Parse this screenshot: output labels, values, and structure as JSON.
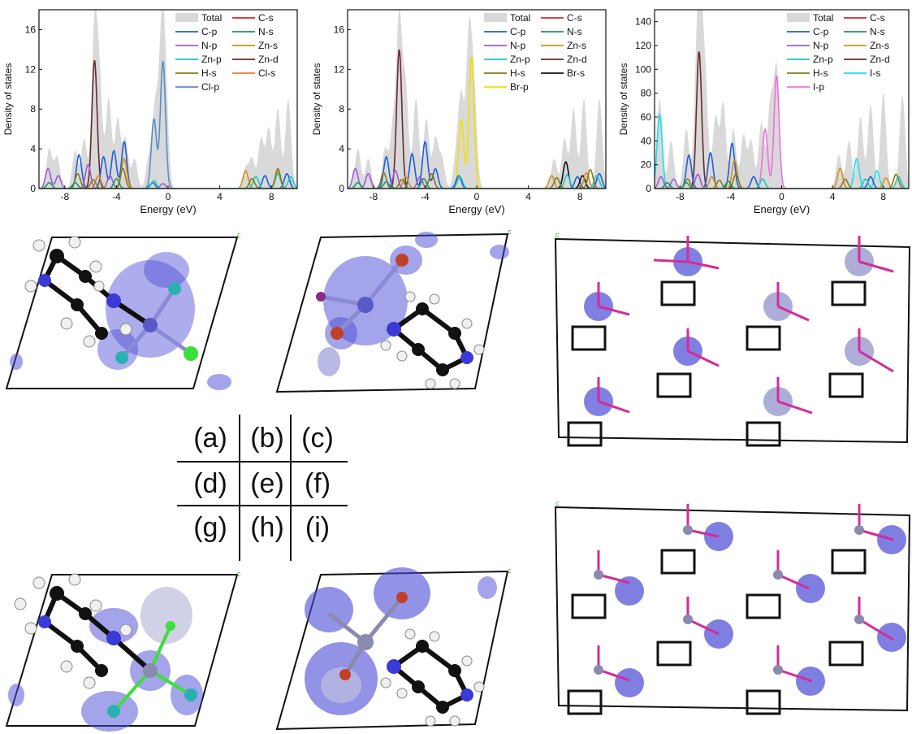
{
  "dos_panels": [
    {
      "id": "a",
      "ylabel": "Density of states",
      "xlabel": "Energy (eV)",
      "xlim": [
        -10,
        10
      ],
      "ylim": [
        0,
        18
      ],
      "xticks": [
        -8,
        -4,
        0,
        4,
        8
      ],
      "yticks": [
        0,
        4,
        8,
        12,
        16
      ],
      "legend": [
        "Total",
        "C-s",
        "C-p",
        "N-s",
        "N-p",
        "Zn-s",
        "Zn-p",
        "Zn-d",
        "H-s",
        "Cl-s",
        "Cl-p"
      ],
      "colors": {
        "Total": "#d9d9d9",
        "C-s": "#d62728",
        "C-p": "#1f5fd6",
        "N-s": "#1a9a5a",
        "N-p": "#a05ad6",
        "Zn-s": "#d6901a",
        "Zn-p": "#1ac6c6",
        "Zn-d": "#6b2a2a",
        "H-s": "#8a7a1a",
        "Cl-s": "#f07a2a",
        "Cl-p": "#5a8ec6"
      },
      "peaks": {
        "Total": [
          [
            -9.2,
            4
          ],
          [
            -8.6,
            3.2
          ],
          [
            -7.2,
            3.8
          ],
          [
            -6.5,
            5
          ],
          [
            -5.7,
            16
          ],
          [
            -5.3,
            10
          ],
          [
            -4.6,
            9
          ],
          [
            -3.9,
            7
          ],
          [
            -3.3,
            5
          ],
          [
            -2.6,
            3
          ],
          [
            -1.5,
            3
          ],
          [
            -1.0,
            8
          ],
          [
            -0.5,
            14
          ],
          [
            -0.2,
            9
          ],
          [
            6.0,
            2
          ],
          [
            6.5,
            3
          ],
          [
            7.2,
            5
          ],
          [
            7.8,
            6
          ],
          [
            8.5,
            8
          ],
          [
            9.3,
            9
          ]
        ],
        "Zn-d": [
          [
            -5.7,
            12.9
          ]
        ],
        "Cl-p": [
          [
            -1.1,
            7
          ],
          [
            -0.4,
            12.8
          ]
        ],
        "C-p": [
          [
            -6.9,
            3.4
          ],
          [
            -5.0,
            3.2
          ],
          [
            -4.2,
            3.8
          ],
          [
            -3.4,
            4.7
          ],
          [
            -1.2,
            0.6
          ],
          [
            7.5,
            1.3
          ],
          [
            9.2,
            1.5
          ]
        ],
        "Zn-s": [
          [
            -3.4,
            3
          ],
          [
            -5.4,
            1.3
          ],
          [
            6.0,
            1.8
          ],
          [
            8.5,
            1.7
          ]
        ],
        "N-p": [
          [
            -9.3,
            2
          ],
          [
            -8.5,
            1.3
          ],
          [
            -6.2,
            2.4
          ],
          [
            -4.5,
            1.3
          ],
          [
            -0.4,
            0.5
          ]
        ],
        "Zn-p": [
          [
            -1.1,
            0.8
          ],
          [
            6.8,
            1.2
          ],
          [
            8.5,
            1.5
          ],
          [
            9.5,
            1.2
          ]
        ],
        "H-s": [
          [
            -7.0,
            1.5
          ],
          [
            -5.8,
            0.9
          ],
          [
            -3.5,
            2
          ],
          [
            6.5,
            1
          ],
          [
            8.5,
            2
          ]
        ],
        "N-s": [
          [
            -9.2,
            0.6
          ],
          [
            -7.2,
            0.6
          ],
          [
            -4.0,
            1.0
          ]
        ]
      }
    },
    {
      "id": "b",
      "ylabel": "Density of states",
      "xlabel": "Energy (eV)",
      "xlim": [
        -10,
        10
      ],
      "ylim": [
        0,
        18
      ],
      "xticks": [
        -8,
        -4,
        0,
        4,
        8
      ],
      "yticks": [
        0,
        4,
        8,
        12,
        16
      ],
      "legend": [
        "Total",
        "C-s",
        "C-p",
        "N-s",
        "N-p",
        "Zn-s",
        "Zn-p",
        "Zn-d",
        "H-s",
        "Br-s",
        "Br-p"
      ],
      "colors": {
        "Total": "#d9d9d9",
        "C-s": "#d62728",
        "C-p": "#1f5fd6",
        "N-s": "#1a9a5a",
        "N-p": "#a05ad6",
        "Zn-s": "#d6901a",
        "Zn-p": "#1ac6c6",
        "Zn-d": "#6b2a2a",
        "H-s": "#8a7a1a",
        "Br-s": "#111111",
        "Br-p": "#f0e000"
      },
      "peaks": {
        "Total": [
          [
            -9.2,
            4
          ],
          [
            -8.4,
            3
          ],
          [
            -7.1,
            4
          ],
          [
            -6.5,
            6
          ],
          [
            -6.0,
            17
          ],
          [
            -5.5,
            10
          ],
          [
            -4.7,
            9
          ],
          [
            -3.9,
            7
          ],
          [
            -3.2,
            5
          ],
          [
            -2.7,
            3
          ],
          [
            -1.6,
            3
          ],
          [
            -1.2,
            9
          ],
          [
            -0.6,
            15
          ],
          [
            -0.2,
            9
          ],
          [
            6.0,
            3
          ],
          [
            6.8,
            5
          ],
          [
            7.5,
            8
          ],
          [
            8.3,
            9
          ],
          [
            9.5,
            9
          ]
        ],
        "Zn-d": [
          [
            -6.0,
            14
          ]
        ],
        "Br-p": [
          [
            -1.2,
            6.9
          ],
          [
            -0.4,
            13.3
          ]
        ],
        "C-p": [
          [
            -7.0,
            3.2
          ],
          [
            -5.0,
            3.5
          ],
          [
            -4.0,
            4.7
          ],
          [
            -3.2,
            2
          ],
          [
            -1.4,
            1.3
          ],
          [
            7.8,
            1.2
          ],
          [
            9.5,
            1.5
          ]
        ],
        "Br-s": [
          [
            6.9,
            2.7
          ],
          [
            8.2,
            1.3
          ]
        ],
        "Zn-s": [
          [
            -3.5,
            1.5
          ],
          [
            -5.5,
            1.2
          ],
          [
            5.8,
            1.3
          ],
          [
            8.5,
            1.6
          ]
        ],
        "N-p": [
          [
            -9.4,
            2
          ],
          [
            -8.4,
            1.5
          ],
          [
            -6.3,
            1.8
          ],
          [
            -4.4,
            1.2
          ]
        ],
        "Zn-p": [
          [
            -1.3,
            1.2
          ],
          [
            7.0,
            1.4
          ],
          [
            9.3,
            1.3
          ]
        ],
        "H-s": [
          [
            -7.2,
            1.6
          ],
          [
            -5.8,
            0.9
          ],
          [
            -3.5,
            1.5
          ],
          [
            6.2,
            1.1
          ],
          [
            8.8,
            1.9
          ]
        ],
        "N-s": [
          [
            -9.2,
            0.6
          ],
          [
            -7.0,
            0.7
          ],
          [
            -4.1,
            1.0
          ]
        ]
      }
    },
    {
      "id": "c",
      "ylabel": "Density of states",
      "xlabel": "Energy (eV)",
      "xlim": [
        -10,
        10
      ],
      "ylim": [
        0,
        150
      ],
      "xticks": [
        -8,
        -4,
        0,
        4,
        8
      ],
      "yticks": [
        0,
        20,
        40,
        60,
        80,
        100,
        120,
        140
      ],
      "legend": [
        "Total",
        "C-s",
        "C-p",
        "N-s",
        "N-p",
        "Zn-s",
        "Zn-p",
        "Zn-d",
        "H-s",
        "I-s",
        "I-p"
      ],
      "colors": {
        "Total": "#d9d9d9",
        "C-s": "#d62728",
        "C-p": "#1f5fd6",
        "N-s": "#1a9a5a",
        "N-p": "#a05ad6",
        "Zn-s": "#d6901a",
        "Zn-p": "#1ac6c6",
        "Zn-d": "#6b2a2a",
        "H-s": "#8a7a1a",
        "I-s": "#1ae0f0",
        "I-p": "#f070e0"
      },
      "peaks": {
        "Total": [
          [
            -9.6,
            75
          ],
          [
            -8.7,
            40
          ],
          [
            -7.5,
            50
          ],
          [
            -6.7,
            80
          ],
          [
            -6.4,
            135
          ],
          [
            -6.0,
            80
          ],
          [
            -5.2,
            60
          ],
          [
            -4.6,
            72
          ],
          [
            -3.8,
            50
          ],
          [
            -3.0,
            45
          ],
          [
            -2.4,
            40
          ],
          [
            -1.6,
            55
          ],
          [
            -0.9,
            70
          ],
          [
            -0.4,
            100
          ],
          [
            4.5,
            28
          ],
          [
            5.3,
            40
          ],
          [
            6.2,
            60
          ],
          [
            7.0,
            70
          ],
          [
            8.0,
            80
          ],
          [
            9.5,
            78
          ]
        ],
        "Zn-d": [
          [
            -6.5,
            115
          ]
        ],
        "I-p": [
          [
            -1.3,
            50
          ],
          [
            -0.4,
            95
          ]
        ],
        "I-s": [
          [
            -9.6,
            62
          ],
          [
            5.9,
            25
          ],
          [
            7.5,
            15
          ]
        ],
        "C-p": [
          [
            -7.3,
            28
          ],
          [
            -5.6,
            30
          ],
          [
            -3.9,
            38
          ],
          [
            -2.2,
            10
          ],
          [
            7.0,
            10
          ]
        ],
        "Zn-s": [
          [
            -3.7,
            24
          ],
          [
            -5.5,
            10
          ],
          [
            4.6,
            17
          ],
          [
            8.2,
            9
          ]
        ],
        "N-p": [
          [
            -9.5,
            10
          ],
          [
            -8.5,
            8
          ],
          [
            -6.6,
            12
          ]
        ],
        "Zn-p": [
          [
            -1.5,
            8
          ],
          [
            6.6,
            8
          ],
          [
            9.2,
            10
          ]
        ],
        "H-s": [
          [
            -7.4,
            8
          ],
          [
            -4.9,
            7
          ],
          [
            -3.6,
            12
          ],
          [
            5.0,
            8
          ],
          [
            9.0,
            12
          ]
        ],
        "N-s": [
          [
            -9.0,
            5
          ],
          [
            -7.5,
            5
          ],
          [
            -4.2,
            6
          ]
        ]
      }
    }
  ],
  "label_table": [
    [
      "(a)",
      "(b)",
      "(c)"
    ],
    [
      "(d)",
      "(e)",
      "(f)"
    ],
    [
      "(g)",
      "(h)",
      "(i)"
    ]
  ],
  "structure_panels": [
    {
      "id": "d",
      "corner_label": "c"
    },
    {
      "id": "e",
      "corner_label": "c"
    },
    {
      "id": "f",
      "corner_label": "c"
    },
    {
      "id": "g",
      "corner_label": "c"
    },
    {
      "id": "h",
      "corner_label": "c"
    },
    {
      "id": "i",
      "corner_label": "c"
    }
  ]
}
